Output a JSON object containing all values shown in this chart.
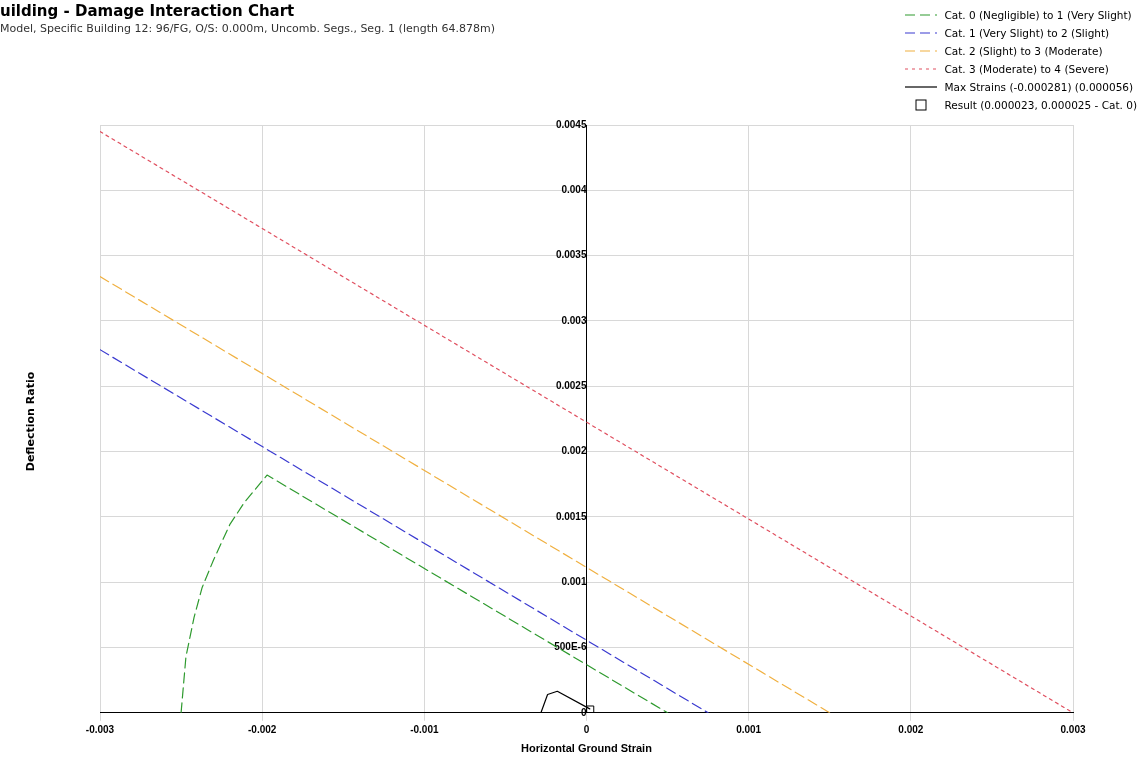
{
  "chart_data": {
    "type": "line",
    "title": "uilding - Damage Interaction Chart",
    "subtitle": "Model, Specific Building 12: 96/FG, O/S: 0.000m, Uncomb. Segs., Seg. 1 (length 64.878m)",
    "xlabel": "Horizontal Ground Strain",
    "ylabel": "Deflection Ratio",
    "series": [
      {
        "name": "Cat. 0 (Negligible) to 1 (Very Slight)",
        "color": "#2e9a2e",
        "line_style": "dashed",
        "x": [
          -0.0025,
          -0.00247,
          -0.00242,
          -0.00237,
          -0.0023,
          -0.0022,
          -0.00211,
          -0.00197,
          0.0005
        ],
        "values": [
          0,
          0.00043,
          0.00073,
          0.00096,
          0.00117,
          0.00144,
          0.00161,
          0.00182,
          0
        ]
      },
      {
        "name": "Cat. 1 (Very Slight) to 2 (Slight)",
        "color": "#3a3ad0",
        "line_style": "dashed",
        "x": [
          -0.003,
          0.00075
        ],
        "values": [
          0.00278,
          0
        ]
      },
      {
        "name": "Cat. 2 (Slight) to 3 (Moderate)",
        "color": "#f0b040",
        "line_style": "dashed",
        "x": [
          -0.003,
          0.0015
        ],
        "values": [
          0.00334,
          0
        ]
      },
      {
        "name": "Cat. 3 (Moderate) to 4 (Severe)",
        "color": "#e05060",
        "line_style": "dotted",
        "x": [
          -0.003,
          0.003
        ],
        "values": [
          0.00445,
          0
        ]
      },
      {
        "name": "Max Strains (-0.000281) (0.000056)",
        "color": "#000000",
        "line_style": "solid",
        "x": [
          -0.000281,
          -0.00024,
          -0.00018,
          2e-05
        ],
        "values": [
          0,
          0.00014,
          0.000165,
          3e-05
        ]
      },
      {
        "name": "Result (0.000023, 0.000025 - Cat. 0)",
        "type": "scatter",
        "marker": "square",
        "color": "#000000",
        "x": [
          2.3e-05
        ],
        "values": [
          2.5e-05
        ]
      }
    ],
    "marker": "none",
    "grid": true,
    "legend": "top right",
    "xlim": [
      -0.003,
      0.003
    ],
    "xticks": [
      -0.003,
      -0.002,
      -0.001,
      0,
      0.001,
      0.002,
      0.003
    ],
    "ylim": [
      0,
      0.0045
    ],
    "yticks": [
      0,
      {
        "value": 0.0005,
        "label": "500E-6"
      },
      0.001,
      0.0015,
      0.002,
      0.0025,
      0.003,
      0.0035,
      0.004,
      0.0045
    ]
  }
}
